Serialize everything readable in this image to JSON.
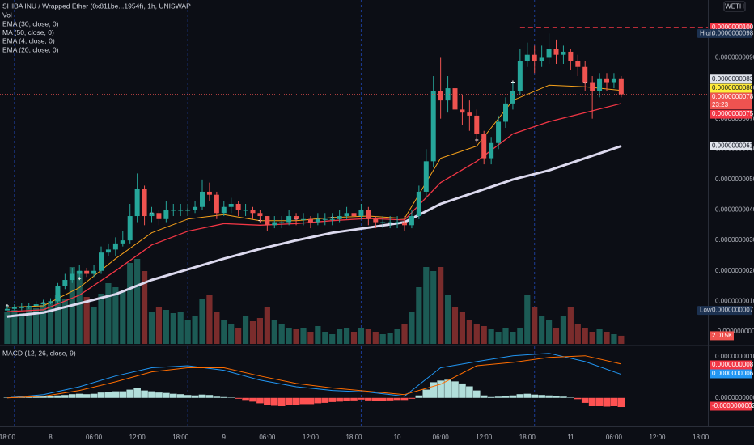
{
  "header": {
    "symbol": "SHIBA INU / Wrapped Ether (0x811be...1954f), 1h, UNISWAP",
    "currency": "WETH"
  },
  "chart_data": [
    {
      "type": "candlestick",
      "xlim": [
        -1,
        97
      ],
      "ylim": [
        -4e-10,
        1.09e-08
      ],
      "yticks": [
        {
          "value": 9e-09,
          "label": "0.0000000090"
        },
        {
          "value": 8e-09,
          "label": "0.0000000080"
        },
        {
          "value": 7e-09,
          "label": "0.0000000070"
        },
        {
          "value": 6e-09,
          "label": "0.0000000060"
        },
        {
          "value": 5e-09,
          "label": "0.0000000050"
        },
        {
          "value": 4e-09,
          "label": "0.0000000040"
        },
        {
          "value": 3e-09,
          "label": "0.0000000030"
        },
        {
          "value": 2e-09,
          "label": "0.0000000020"
        },
        {
          "value": 1e-09,
          "label": "0.0000000010"
        },
        {
          "value": 0,
          "label": "-0.0000000000"
        }
      ],
      "session_breaks": [
        1,
        25,
        49,
        73
      ],
      "open": [
        7e-10,
        7.5e-10,
        8e-10,
        8e-10,
        8.5e-10,
        9e-10,
        9.5e-10,
        1e-09,
        1.5e-09,
        1.7e-09,
        1.9e-09,
        2e-09,
        1.9e-09,
        2e-09,
        2.6e-09,
        2.7e-09,
        2.9e-09,
        3e-09,
        3.8e-09,
        4.7e-09,
        3.8e-09,
        3.9e-09,
        3.7e-09,
        4e-09,
        4e-09,
        4e-09,
        4e-09,
        4.1e-09,
        4.6e-09,
        4.5e-09,
        3.9e-09,
        4.1e-09,
        4.2e-09,
        4e-09,
        4e-09,
        3.9e-09,
        3.8e-09,
        3.5e-09,
        3.6e-09,
        3.6e-09,
        3.8e-09,
        3.7e-09,
        3.7e-09,
        3.6e-09,
        3.7e-09,
        3.7e-09,
        3.7e-09,
        3.8e-09,
        3.9e-09,
        3.8e-09,
        4e-09,
        3.7e-09,
        3.6e-09,
        3.6e-09,
        3.6e-09,
        3.6e-09,
        3.5e-09,
        3.8e-09,
        4.6e-09,
        5.6e-09,
        7.9e-09,
        7.6e-09,
        8e-09,
        7.3e-09,
        7.2e-09,
        7.1e-09,
        6.5e-09,
        5.7e-09,
        6.2e-09,
        6.9e-09,
        7.5e-09,
        7.9e-09,
        8.9e-09,
        9.1e-09,
        8.9e-09,
        9e-09,
        9.3e-09,
        9.1e-09,
        9.2e-09,
        8.9e-09,
        8.7e-09,
        8.2e-09,
        7.9e-09,
        8.3e-09,
        8.2e-09,
        8.3e-09
      ],
      "high": [
        8.5e-10,
        9e-10,
        9.5e-10,
        9.5e-10,
        1e-09,
        1.05e-09,
        1.1e-09,
        1.6e-09,
        1.9e-09,
        2.1e-09,
        2.2e-09,
        2.1e-09,
        2.2e-09,
        2.8e-09,
        2.9e-09,
        3.1e-09,
        3.3e-09,
        4.2e-09,
        5.2e-09,
        4.8e-09,
        4.1e-09,
        4e-09,
        4.3e-09,
        4.2e-09,
        4.2e-09,
        4.2e-09,
        4.3e-09,
        5e-09,
        4.9e-09,
        4.6e-09,
        4.3e-09,
        4.4e-09,
        4.3e-09,
        4.2e-09,
        4.1e-09,
        4e-09,
        3.8e-09,
        3.8e-09,
        3.8e-09,
        4e-09,
        3.9e-09,
        3.9e-09,
        3.8e-09,
        3.9e-09,
        3.9e-09,
        3.9e-09,
        4e-09,
        4.1e-09,
        4.1e-09,
        4.2e-09,
        4.1e-09,
        3.8e-09,
        3.8e-09,
        3.8e-09,
        3.8e-09,
        3.8e-09,
        4e-09,
        4.8e-09,
        6e-09,
        8.4e-09,
        9e-09,
        8.4e-09,
        8.2e-09,
        7.8e-09,
        7.6e-09,
        7.3e-09,
        6.6e-09,
        6.4e-09,
        7.1e-09,
        7.7e-09,
        8.2e-09,
        9.3e-09,
        9.5e-09,
        9.4e-09,
        9.4e-09,
        9.8e-09,
        9.6e-09,
        9.4e-09,
        9.3e-09,
        9.1e-09,
        8.9e-09,
        8.4e-09,
        8.5e-09,
        8.5e-09,
        8.5e-09,
        8.4e-09
      ],
      "low": [
        7e-10,
        7e-10,
        7e-10,
        7.5e-10,
        8e-10,
        8.5e-10,
        9e-10,
        9.5e-10,
        1.4e-09,
        1.6e-09,
        1.8e-09,
        1.8e-09,
        1.8e-09,
        1.9e-09,
        2.5e-09,
        2.5e-09,
        2.8e-09,
        2.9e-09,
        3.6e-09,
        3.5e-09,
        3.6e-09,
        3.5e-09,
        3.6e-09,
        3.8e-09,
        3.8e-09,
        3.8e-09,
        3.9e-09,
        4e-09,
        4.3e-09,
        3.7e-09,
        3.8e-09,
        3.9e-09,
        3.8e-09,
        3.8e-09,
        3.7e-09,
        3.6e-09,
        3.3e-09,
        3.4e-09,
        3.4e-09,
        3.5e-09,
        3.5e-09,
        3.5e-09,
        3.4e-09,
        3.5e-09,
        3.5e-09,
        3.5e-09,
        3.6e-09,
        3.7e-09,
        3.6e-09,
        3.7e-09,
        3.5e-09,
        3.4e-09,
        3.4e-09,
        3.4e-09,
        3.4e-09,
        3.3e-09,
        3.4e-09,
        3.7e-09,
        4.4e-09,
        5.4e-09,
        7e-09,
        7.2e-09,
        7e-09,
        6.8e-09,
        6.6e-09,
        6.2e-09,
        5.5e-09,
        5.5e-09,
        6e-09,
        6.7e-09,
        7.3e-09,
        7.8e-09,
        8.7e-09,
        8.5e-09,
        8.7e-09,
        8.8e-09,
        8.8e-09,
        8.8e-09,
        8.6e-09,
        8.4e-09,
        7.9e-09,
        7e-09,
        7.7e-09,
        7.9e-09,
        8e-09,
        7.7e-09
      ],
      "close": [
        7.5e-10,
        8e-10,
        8e-10,
        8.5e-10,
        9e-10,
        9.5e-10,
        1e-09,
        1.5e-09,
        1.7e-09,
        1.9e-09,
        2e-09,
        1.9e-09,
        2e-09,
        2.6e-09,
        2.7e-09,
        2.9e-09,
        3e-09,
        3.8e-09,
        4.7e-09,
        3.8e-09,
        3.9e-09,
        3.7e-09,
        4e-09,
        4e-09,
        4e-09,
        4e-09,
        4.1e-09,
        4.6e-09,
        4.5e-09,
        3.9e-09,
        4.1e-09,
        4.2e-09,
        4e-09,
        4e-09,
        3.9e-09,
        3.8e-09,
        3.5e-09,
        3.6e-09,
        3.6e-09,
        3.8e-09,
        3.7e-09,
        3.7e-09,
        3.6e-09,
        3.7e-09,
        3.7e-09,
        3.7e-09,
        3.8e-09,
        3.9e-09,
        3.8e-09,
        4e-09,
        3.7e-09,
        3.6e-09,
        3.6e-09,
        3.6e-09,
        3.6e-09,
        3.5e-09,
        3.8e-09,
        4.6e-09,
        5.6e-09,
        7.9e-09,
        7.6e-09,
        8e-09,
        7.3e-09,
        7.2e-09,
        7.1e-09,
        6.5e-09,
        5.7e-09,
        6.2e-09,
        6.9e-09,
        7.5e-09,
        7.9e-09,
        8.9e-09,
        9.1e-09,
        8.9e-09,
        9e-09,
        9.3e-09,
        9.1e-09,
        9.2e-09,
        8.9e-09,
        8.7e-09,
        8.2e-09,
        7.9e-09,
        8.3e-09,
        8.2e-09,
        8.3e-09,
        7.8e-09
      ],
      "up_color": "#26a69a",
      "down_color": "#ef5350",
      "volume": {
        "name": "Vol",
        "ylim": [
          0,
          85000
        ],
        "up_color": "#1c5b55",
        "down_color": "#7a2c2c",
        "values": [
          8000,
          8400,
          7600,
          9000,
          8800,
          9600,
          10000,
          12000,
          11000,
          19000,
          18000,
          11600,
          9000,
          12400,
          15000,
          14000,
          13000,
          20000,
          21000,
          18000,
          8000,
          9000,
          8400,
          7600,
          8000,
          6000,
          7000,
          11000,
          12000,
          8000,
          6000,
          5000,
          4000,
          7000,
          5600,
          6400,
          9000,
          6000,
          5000,
          4000,
          3600,
          4000,
          3000,
          4400,
          3000,
          2400,
          3600,
          4000,
          3000,
          4000,
          3600,
          3000,
          2400,
          2800,
          3600,
          5000,
          8000,
          14000,
          19000,
          18000,
          19000,
          12000,
          9000,
          8000,
          6000,
          5000,
          4400,
          3600,
          3000,
          4000,
          3000,
          4000,
          12000,
          9000,
          7000,
          6000,
          4000,
          7000,
          9000,
          5000,
          4000,
          3000,
          3600,
          3000,
          2400,
          2015
        ]
      },
      "lines": [
        {
          "name": "EMA (30, close, 0)",
          "color": "#f7a21b",
          "width": 1,
          "x": [
            0,
            5,
            10,
            15,
            20,
            25,
            30,
            35,
            40,
            45,
            50,
            55,
            60,
            65,
            70,
            75,
            80,
            85
          ],
          "values": [
            8e-10,
            8.5e-10,
            1.45e-09,
            2.4e-09,
            3.25e-09,
            3.7e-09,
            3.85e-09,
            3.65e-09,
            3.65e-09,
            3.75e-09,
            3.8e-09,
            3.72e-09,
            5.7e-09,
            6.1e-09,
            7.6e-09,
            8.1e-09,
            8.05e-09,
            7.93e-09
          ]
        },
        {
          "name": "MA (50, close, 0)",
          "color": "#dcd9ee",
          "width": 3,
          "x": [
            0,
            5,
            10,
            15,
            20,
            25,
            30,
            35,
            40,
            45,
            50,
            55,
            60,
            65,
            70,
            75,
            80,
            85
          ],
          "values": [
            5e-10,
            6.3e-10,
            9.3e-10,
            1.23e-09,
            1.7e-09,
            2.05e-09,
            2.4e-09,
            2.72e-09,
            3e-09,
            3.25e-09,
            3.42e-09,
            3.6e-09,
            4.2e-09,
            4.6e-09,
            5e-09,
            5.3e-09,
            5.7e-09,
            6.1e-09
          ]
        },
        {
          "name": "EMA (4, close, 0)",
          "color": "#ffffff",
          "style": "cross",
          "x": [
            0,
            5,
            10,
            15,
            20,
            25,
            30,
            35,
            40,
            45,
            50,
            55,
            60,
            65,
            70,
            75,
            80,
            85
          ],
          "values": [
            8.5e-10,
            9.5e-10,
            1.75e-09,
            2.8e-09,
            3.9e-09,
            4e-09,
            4.05e-09,
            3.65e-09,
            3.7e-09,
            3.75e-09,
            3.75e-09,
            3.6e-09,
            7.7e-09,
            6.3e-09,
            8.2e-09,
            9.1e-09,
            8.2e-09,
            8.1e-09
          ]
        },
        {
          "name": "EMA (20, close, 0)",
          "color": "#f23645",
          "width": 1.3,
          "x": [
            0,
            5,
            10,
            15,
            20,
            25,
            30,
            35,
            40,
            45,
            50,
            55,
            60,
            65,
            70,
            75,
            80,
            85
          ],
          "values": [
            6.6e-10,
            7.2e-10,
            1.2e-09,
            2e-09,
            2.85e-09,
            3.3e-09,
            3.55e-09,
            3.5e-09,
            3.55e-09,
            3.65e-09,
            3.72e-09,
            3.67e-09,
            4.9e-09,
            5.6e-09,
            6.5e-09,
            6.9e-09,
            7.2e-09,
            7.5e-09
          ]
        }
      ],
      "alert": {
        "value": 1e-08,
        "label": "0.0000000100",
        "x": 71,
        "color": "#f23645"
      },
      "price_labels": [
        {
          "value": 9.8e-09,
          "label": "0.0000000098",
          "title": "High",
          "bg": "#1c3150",
          "fg": "#d1d4dc"
        },
        {
          "value": 8.3e-09,
          "label": "0.0000000083",
          "bg": "#e0e3eb",
          "fg": "#131722"
        },
        {
          "value": 8e-09,
          "label": "0.0000000080",
          "bg": "#ffeb3b",
          "fg": "#131722"
        },
        {
          "value": 7.8e-09,
          "label": "0.0000000078",
          "countdown": "23:23",
          "bg": "#ef5350",
          "fg": "#ffffff"
        },
        {
          "value": 7.5e-09,
          "label": "0.0000000075",
          "bg": "#f23645",
          "fg": "#ffffff"
        },
        {
          "value": 6.1e-09,
          "label": "0.0000000061",
          "bg": "#e0e3eb",
          "fg": "#131722"
        },
        {
          "value": 7e-10,
          "label": "0.0000000007",
          "title": "Low",
          "bg": "#1c3150",
          "fg": "#d1d4dc"
        }
      ],
      "volume_label": {
        "value": 2015,
        "label": "2.015K",
        "bg": "#ef5350",
        "fg": "#ffffff"
      }
    },
    {
      "type": "macd",
      "title": "MACD (12, 26, close, 9)",
      "xlim": [
        -1,
        97
      ],
      "ylim": [
        -6.9e-10,
        1.25e-09
      ],
      "yticks": [
        {
          "value": 1e-09,
          "label": "0.0000000010"
        },
        {
          "value": 0,
          "label": "0.0000000000"
        }
      ],
      "xticks": [
        {
          "value": 0,
          "label": "18:00"
        },
        {
          "value": 6,
          "label": "8"
        },
        {
          "value": 12,
          "label": "06:00"
        },
        {
          "value": 18,
          "label": "12:00"
        },
        {
          "value": 24,
          "label": "18:00"
        },
        {
          "value": 30,
          "label": "9"
        },
        {
          "value": 36,
          "label": "06:00"
        },
        {
          "value": 42,
          "label": "12:00"
        },
        {
          "value": 48,
          "label": "18:00"
        },
        {
          "value": 54,
          "label": "10"
        },
        {
          "value": 60,
          "label": "06:00"
        },
        {
          "value": 66,
          "label": "12:00"
        },
        {
          "value": 72,
          "label": "18:00"
        },
        {
          "value": 78,
          "label": "11"
        },
        {
          "value": 84,
          "label": "06:00"
        },
        {
          "value": 90,
          "label": "12:00"
        },
        {
          "value": 96,
          "label": "18:00"
        }
      ],
      "session_breaks": [
        1,
        25,
        49,
        73
      ],
      "histogram": {
        "pos_color": "#b2dfdb",
        "neg_color": "#ff5252",
        "values": [
          1e-11,
          2e-11,
          2e-11,
          3e-11,
          3e-11,
          4e-11,
          4e-11,
          6e-11,
          7e-11,
          9e-11,
          1e-10,
          9e-11,
          1e-10,
          1.3e-10,
          1.4e-10,
          1.6e-10,
          1.6e-10,
          2e-10,
          2.4e-10,
          1.8e-10,
          1.6e-10,
          1.3e-10,
          1.2e-10,
          1e-10,
          9e-11,
          7e-11,
          6e-11,
          8e-11,
          7e-11,
          3e-11,
          2e-11,
          1e-11,
          -2e-11,
          -5e-11,
          -9e-11,
          -1.3e-10,
          -1.8e-10,
          -1.9e-10,
          -2e-10,
          -1.8e-10,
          -1.7e-10,
          -1.5e-10,
          -1.5e-10,
          -1.3e-10,
          -1.2e-10,
          -1e-10,
          -9e-11,
          -7e-11,
          -6e-11,
          -4e-11,
          -6e-11,
          -7e-11,
          -7e-11,
          -6e-11,
          -5e-11,
          -5e-11,
          -2e-11,
          6e-11,
          2e-10,
          3.8e-10,
          4.2e-10,
          4.4e-10,
          4e-10,
          3.5e-10,
          2.8e-10,
          1.8e-10,
          6e-11,
          2e-11,
          3e-11,
          5e-11,
          6e-11,
          9e-11,
          1e-10,
          8e-11,
          7e-11,
          6e-11,
          5e-11,
          3e-11,
          1e-11,
          -3e-11,
          -1.2e-10,
          -2e-10,
          -2e-10,
          -2.1e-10,
          -2e-10,
          -2.2e-10
        ]
      },
      "lines": [
        {
          "color": "#2196f3",
          "width": 1,
          "x": [
            0,
            5,
            10,
            15,
            20,
            25,
            30,
            35,
            40,
            45,
            50,
            55,
            60,
            65,
            70,
            75,
            80,
            85
          ],
          "values": [
            0,
            8e-11,
            2.7e-10,
            5.3e-10,
            7.3e-10,
            7.8e-10,
            6.7e-10,
            4.3e-10,
            2.7e-10,
            1.8e-10,
            1.4e-10,
            4e-11,
            7.3e-10,
            8.8e-10,
            1.02e-09,
            1.08e-09,
            8.8e-10,
            5.7e-10
          ]
        },
        {
          "color": "#ff6d00",
          "width": 1,
          "x": [
            0,
            5,
            10,
            15,
            20,
            25,
            30,
            35,
            40,
            45,
            50,
            55,
            60,
            65,
            70,
            75,
            80,
            85
          ],
          "values": [
            0,
            4e-11,
            1.8e-10,
            3.9e-10,
            6.3e-10,
            7.3e-10,
            7.3e-10,
            5.3e-10,
            3.5e-10,
            2.4e-10,
            1.6e-10,
            8e-11,
            3.3e-10,
            7.8e-10,
            8.6e-10,
            9.8e-10,
            1.02e-09,
            8.2e-10
          ]
        }
      ],
      "price_labels": [
        {
          "value": 8e-10,
          "label": "0.0000000008",
          "bg": "#f23645",
          "fg": "#ffffff"
        },
        {
          "value": 6e-10,
          "label": "0.0000000006",
          "bg": "#2196f3",
          "fg": "#ffffff"
        },
        {
          "value": -2e-10,
          "label": "-0.0000000002",
          "bg": "#f23645",
          "fg": "#ffffff"
        }
      ]
    }
  ]
}
